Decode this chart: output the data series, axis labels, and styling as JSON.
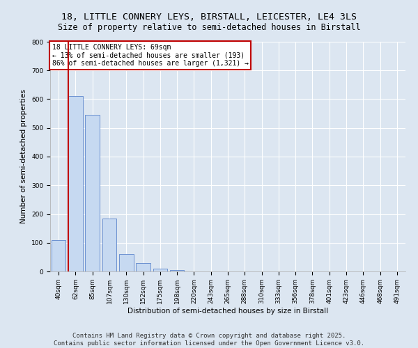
{
  "title1": "18, LITTLE CONNERY LEYS, BIRSTALL, LEICESTER, LE4 3LS",
  "title2": "Size of property relative to semi-detached houses in Birstall",
  "xlabel": "Distribution of semi-detached houses by size in Birstall",
  "ylabel": "Number of semi-detached properties",
  "annotation_title": "18 LITTLE CONNERY LEYS: 69sqm",
  "annotation_line1": "← 13% of semi-detached houses are smaller (193)",
  "annotation_line2": "86% of semi-detached houses are larger (1,321) →",
  "footer1": "Contains HM Land Registry data © Crown copyright and database right 2025.",
  "footer2": "Contains public sector information licensed under the Open Government Licence v3.0.",
  "bar_labels": [
    "40sqm",
    "62sqm",
    "85sqm",
    "107sqm",
    "130sqm",
    "152sqm",
    "175sqm",
    "198sqm",
    "220sqm",
    "243sqm",
    "265sqm",
    "288sqm",
    "310sqm",
    "333sqm",
    "356sqm",
    "378sqm",
    "401sqm",
    "423sqm",
    "446sqm",
    "468sqm",
    "491sqm"
  ],
  "bar_values": [
    110,
    610,
    545,
    185,
    60,
    28,
    10,
    5,
    1,
    0,
    0,
    0,
    0,
    0,
    0,
    0,
    0,
    0,
    0,
    0,
    0
  ],
  "bar_color": "#c6d9f1",
  "bar_edge_color": "#4472c4",
  "vline_color": "#c00000",
  "annotation_box_color": "#c00000",
  "background_color": "#dce6f1",
  "fig_background_color": "#dce6f1",
  "ylim": [
    0,
    800
  ],
  "yticks": [
    0,
    100,
    200,
    300,
    400,
    500,
    600,
    700,
    800
  ],
  "grid_color": "#ffffff",
  "title_fontsize": 9.5,
  "subtitle_fontsize": 8.5,
  "axis_label_fontsize": 7.5,
  "tick_label_fontsize": 6.5,
  "annotation_fontsize": 7,
  "footer_fontsize": 6.5
}
